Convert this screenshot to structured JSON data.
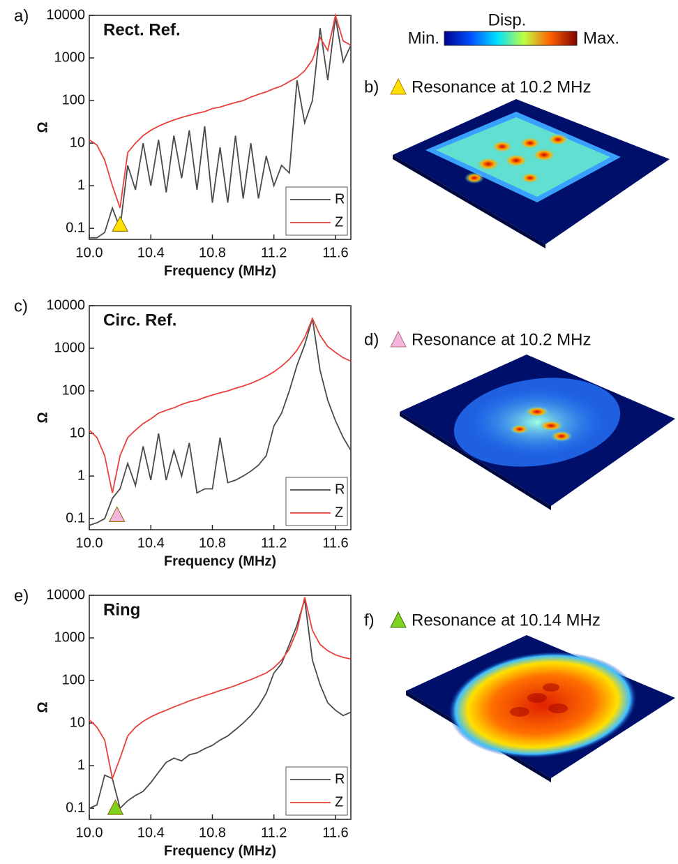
{
  "chart_data": [
    {
      "type": "line",
      "panel_label": "a)",
      "title": "Rect. Ref.",
      "x_label": "Frequency (MHz)",
      "y_label": "Ω",
      "log_y": true,
      "grid": false,
      "legend": "lower right",
      "xlim": [
        10.0,
        11.7
      ],
      "xticks": [
        {
          "value": 10.0,
          "label": "10.0"
        },
        10.4,
        10.8,
        11.2,
        11.6
      ],
      "ylim": [
        0.055,
        10000
      ],
      "yticks": [
        0.1,
        1,
        10,
        100,
        1000,
        10000
      ],
      "x": [
        10.0,
        10.05,
        10.1,
        10.15,
        10.2,
        10.25,
        10.3,
        10.35,
        10.4,
        10.45,
        10.5,
        10.55,
        10.6,
        10.65,
        10.7,
        10.75,
        10.8,
        10.85,
        10.9,
        10.95,
        11.0,
        11.05,
        11.1,
        11.15,
        11.2,
        11.25,
        11.3,
        11.35,
        11.4,
        11.45,
        11.5,
        11.55,
        11.6,
        11.65,
        11.7
      ],
      "series": [
        {
          "name": "R",
          "color": "#4a4a4a",
          "values": [
            0.06,
            0.06,
            0.08,
            0.3,
            0.1,
            3,
            0.8,
            10,
            1,
            12,
            0.7,
            15,
            1.5,
            20,
            0.8,
            25,
            0.4,
            8,
            0.4,
            15,
            0.5,
            10,
            0.5,
            5,
            1,
            3,
            2,
            300,
            30,
            100,
            5000,
            300,
            9000,
            800,
            2000
          ]
        },
        {
          "name": "Z",
          "color": "#e8413c",
          "values": [
            12,
            9,
            4,
            1,
            0.3,
            6,
            10,
            15,
            20,
            25,
            30,
            35,
            40,
            45,
            50,
            55,
            65,
            70,
            80,
            90,
            100,
            120,
            140,
            160,
            190,
            220,
            280,
            350,
            500,
            900,
            3000,
            1500,
            10000,
            2500,
            2000
          ]
        }
      ],
      "marker": {
        "x": 10.2,
        "y": 0.12,
        "color": "#ffe000"
      }
    },
    {
      "type": "line",
      "panel_label": "c)",
      "title": "Circ. Ref.",
      "x_label": "Frequency (MHz)",
      "y_label": "Ω",
      "log_y": true,
      "grid": false,
      "legend": "lower right",
      "xlim": [
        10.0,
        11.7
      ],
      "xticks": [
        {
          "value": 10.0,
          "label": "10.0"
        },
        10.4,
        10.8,
        11.2,
        11.6
      ],
      "ylim": [
        0.055,
        10000
      ],
      "yticks": [
        0.1,
        1,
        10,
        100,
        1000,
        10000
      ],
      "x": [
        10.0,
        10.05,
        10.1,
        10.15,
        10.2,
        10.25,
        10.3,
        10.35,
        10.4,
        10.45,
        10.5,
        10.55,
        10.6,
        10.65,
        10.7,
        10.75,
        10.8,
        10.85,
        10.9,
        10.95,
        11.0,
        11.05,
        11.1,
        11.15,
        11.2,
        11.25,
        11.3,
        11.35,
        11.4,
        11.45,
        11.5,
        11.55,
        11.6,
        11.65,
        11.7
      ],
      "series": [
        {
          "name": "R",
          "color": "#4a4a4a",
          "values": [
            0.07,
            0.08,
            0.1,
            0.3,
            0.5,
            2,
            0.6,
            5,
            0.8,
            10,
            0.8,
            4,
            1,
            6,
            0.4,
            0.5,
            0.5,
            8,
            0.7,
            0.8,
            1,
            1.3,
            1.8,
            3,
            15,
            30,
            100,
            400,
            1200,
            5000,
            300,
            60,
            20,
            8,
            4
          ]
        },
        {
          "name": "Z",
          "color": "#e8413c",
          "values": [
            12,
            8,
            3,
            0.4,
            3,
            8,
            12,
            17,
            22,
            30,
            35,
            40,
            48,
            55,
            60,
            70,
            80,
            90,
            100,
            115,
            130,
            150,
            180,
            220,
            280,
            380,
            550,
            900,
            1800,
            5000,
            2000,
            1100,
            800,
            600,
            500
          ]
        }
      ],
      "marker": {
        "x": 10.18,
        "y": 0.12,
        "color": "#f4b6dc"
      }
    },
    {
      "type": "line",
      "panel_label": "e)",
      "title": "Ring",
      "x_label": "Frequency (MHz)",
      "y_label": "Ω",
      "log_y": true,
      "grid": false,
      "legend": "lower right",
      "xlim": [
        10.0,
        11.7
      ],
      "xticks": [
        {
          "value": 10.0,
          "label": "10.0"
        },
        10.4,
        10.8,
        11.2,
        11.6
      ],
      "ylim": [
        0.055,
        10000
      ],
      "yticks": [
        0.1,
        1,
        10,
        100,
        1000,
        10000
      ],
      "x": [
        10.0,
        10.05,
        10.1,
        10.15,
        10.2,
        10.25,
        10.3,
        10.35,
        10.4,
        10.45,
        10.5,
        10.55,
        10.6,
        10.65,
        10.7,
        10.75,
        10.8,
        10.85,
        10.9,
        10.95,
        11.0,
        11.05,
        11.1,
        11.15,
        11.2,
        11.25,
        11.3,
        11.35,
        11.4,
        11.45,
        11.5,
        11.55,
        11.6,
        11.65,
        11.7
      ],
      "series": [
        {
          "name": "R",
          "color": "#4a4a4a",
          "values": [
            0.1,
            0.12,
            0.6,
            0.5,
            0.1,
            0.15,
            0.2,
            0.25,
            0.4,
            0.7,
            1.2,
            1.5,
            1.3,
            1.8,
            2,
            2.5,
            3,
            4,
            5,
            7,
            10,
            15,
            25,
            50,
            150,
            250,
            700,
            2000,
            8000,
            300,
            80,
            30,
            20,
            15,
            18
          ]
        },
        {
          "name": "Z",
          "color": "#e8413c",
          "values": [
            12,
            8,
            4,
            0.5,
            1.5,
            5,
            8,
            11,
            14,
            17,
            20,
            24,
            28,
            33,
            38,
            44,
            50,
            58,
            66,
            76,
            90,
            105,
            125,
            150,
            200,
            300,
            550,
            1500,
            9000,
            1500,
            700,
            500,
            400,
            350,
            320
          ]
        }
      ],
      "marker": {
        "x": 10.17,
        "y": 0.1,
        "color": "#7ed321"
      }
    }
  ],
  "colorbar": {
    "title": "Disp.",
    "min_label": "Min.",
    "max_label": "Max."
  },
  "panels": [
    {
      "label": "b)",
      "caption": "Resonance at 10.2 MHz"
    },
    {
      "label": "d)",
      "caption": "Resonance at 10.2 MHz"
    },
    {
      "label": "f)",
      "caption": "Resonance at 10.14 MHz"
    }
  ]
}
